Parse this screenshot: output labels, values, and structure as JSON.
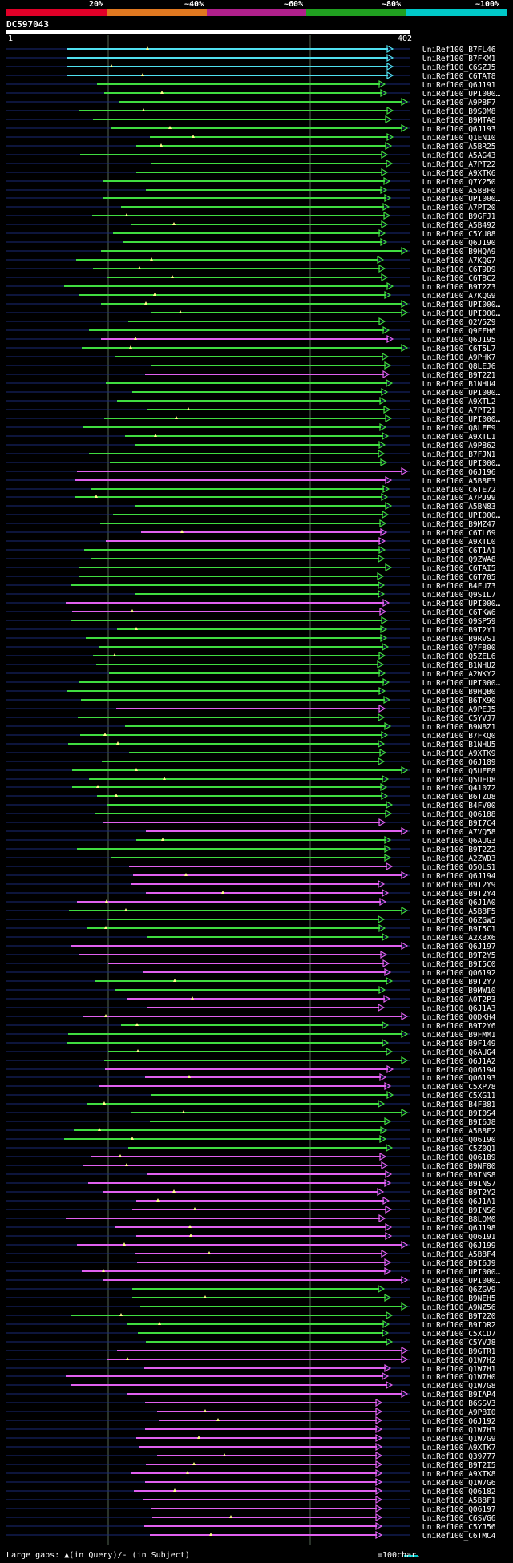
{
  "query_id": "DC597043",
  "query_start": "1",
  "query_end": "402",
  "scale_labels": [
    "20%",
    "~40%",
    "~60%",
    "~80%",
    "~100%"
  ],
  "colors": {
    "scale_20": "#e00028",
    "scale_40": "#e07820",
    "scale_60": "#b0208c",
    "scale_80": "#20a020",
    "scale_100": "#00c8c8",
    "hit_100": "#50e0f0",
    "hit_80": "#40dc40",
    "hit_60": "#e060f0",
    "row_line": "#1a2a78",
    "gridline": "#556655"
  },
  "footer": {
    "large_gaps": "Large gaps: ▲(in Query)/- (in Subject)",
    "scale": "=100char."
  },
  "hits": [
    "UniRef100_B7FL46",
    "UniRef100_B7FKM1",
    "UniRef100_C6SZJ5",
    "UniRef100_C6TAT8",
    "UniRef100_Q6J191",
    "UniRef100_UPI000…",
    "UniRef100_A9P8F7",
    "UniRef100_B9S0M8",
    "UniRef100_B9MTA8",
    "UniRef100_Q6J193",
    "UniRef100_Q1EN10",
    "UniRef100_A5BR25",
    "UniRef100_A5AG43",
    "UniRef100_A7PT22",
    "UniRef100_A9XTK6",
    "UniRef100_Q7Y250",
    "UniRef100_A5B8F0",
    "UniRef100_UPI000…",
    "UniRef100_A7PT20",
    "UniRef100_B9GFJ1",
    "UniRef100_A5B492",
    "UniRef100_C5YU08",
    "UniRef100_Q6J190",
    "UniRef100_B9HQA9",
    "UniRef100_A7KQG7",
    "UniRef100_C6T9D9",
    "UniRef100_C6T8C2",
    "UniRef100_B9T2Z3",
    "UniRef100_A7KQG9",
    "UniRef100_UPI000…",
    "UniRef100_UPI000…",
    "UniRef100_Q2V5Z9",
    "UniRef100_Q9FFH6",
    "UniRef100_Q6J195",
    "UniRef100_C6T5L7",
    "UniRef100_A9PHK7",
    "UniRef100_Q8LEJ6",
    "UniRef100_B9T2Z1",
    "UniRef100_B1NHU4",
    "UniRef100_UPI000…",
    "UniRef100_A9XTL2",
    "UniRef100_A7PT21",
    "UniRef100_UPI000…",
    "UniRef100_Q8LEE9",
    "UniRef100_A9XTL1",
    "UniRef100_A9P862",
    "UniRef100_B7FJN1",
    "UniRef100_UPI000…",
    "UniRef100_Q6J196",
    "UniRef100_A5B8F3",
    "UniRef100_C6TE72",
    "UniRef100_A7PJ99",
    "UniRef100_A5BN83",
    "UniRef100_UPI000…",
    "UniRef100_B9MZ47",
    "UniRef100_C6TL69",
    "UniRef100_A9XTL0",
    "UniRef100_C6T1A1",
    "UniRef100_Q9ZWA8",
    "UniRef100_C6TAI5",
    "UniRef100_C6T705",
    "UniRef100_B4FU73",
    "UniRef100_Q9SIL7",
    "UniRef100_UPI000…",
    "UniRef100_C6TKW6",
    "UniRef100_Q9SP59",
    "UniRef100_B9T2Y1",
    "UniRef100_B9RVS1",
    "UniRef100_Q7F800",
    "UniRef100_Q5ZEL6",
    "UniRef100_B1NHU2",
    "UniRef100_A2WKY2",
    "UniRef100_UPI000…",
    "UniRef100_B9HQB0",
    "UniRef100_B6TX90",
    "UniRef100_A9PEJ5",
    "UniRef100_C5YVJ7",
    "UniRef100_B9NBZ1",
    "UniRef100_B7FKQ0",
    "UniRef100_B1NHU5",
    "UniRef100_A9XTK9",
    "UniRef100_Q6J189",
    "UniRef100_Q5UEF8",
    "UniRef100_Q5UED8",
    "UniRef100_Q41072",
    "UniRef100_B6TZU8",
    "UniRef100_B4FV00",
    "UniRef100_Q06188",
    "UniRef100_B9I7C4",
    "UniRef100_A7VQ58",
    "UniRef100_Q6AUG3",
    "UniRef100_B9T2Z2",
    "UniRef100_A2ZWD3",
    "UniRef100_Q5QLS1",
    "UniRef100_Q6J194",
    "UniRef100_B9T2Y9",
    "UniRef100_B9T2Y4",
    "UniRef100_Q6J1A0",
    "UniRef100_A5B8F5",
    "UniRef100_Q6ZGW5",
    "UniRef100_B9I5C1",
    "UniRef100_A2X3X6",
    "UniRef100_Q6J197",
    "UniRef100_B9T2Y5",
    "UniRef100_B9I5C0",
    "UniRef100_Q06192",
    "UniRef100_B9T2Y7",
    "UniRef100_B9MW10",
    "UniRef100_A0T2P3",
    "UniRef100_Q6J1A3",
    "UniRef100_Q0DKH4",
    "UniRef100_B9T2Y6",
    "UniRef100_B9FMM1",
    "UniRef100_B9F149",
    "UniRef100_Q6AUG4",
    "UniRef100_Q6J1A2",
    "UniRef100_Q06194",
    "UniRef100_Q06193",
    "UniRef100_C5XP78",
    "UniRef100_C5XG11",
    "UniRef100_B4FB81",
    "UniRef100_B9I0S4",
    "UniRef100_B9I6J8",
    "UniRef100_A5B8F2",
    "UniRef100_Q06190",
    "UniRef100_C5Z0Q1",
    "UniRef100_Q06189",
    "UniRef100_B9NF80",
    "UniRef100_B9INS8",
    "UniRef100_B9INS7",
    "UniRef100_B9T2Y2",
    "UniRef100_Q6J1A1",
    "UniRef100_B9INS6",
    "UniRef100_B8LQM0",
    "UniRef100_Q6J198",
    "UniRef100_Q06191",
    "UniRef100_Q6J199",
    "UniRef100_A5B8F4",
    "UniRef100_B9I6J9",
    "UniRef100_UPI000…",
    "UniRef100_UPI000…",
    "UniRef100_Q6ZGV9",
    "UniRef100_B9NEH5",
    "UniRef100_A9NZ56",
    "UniRef100_B9T2Z0",
    "UniRef100_B9IDR2",
    "UniRef100_C5XCD7",
    "UniRef100_C5YVJ8",
    "UniRef100_B9GTR1",
    "UniRef100_Q1W7H2",
    "UniRef100_Q1W7H1",
    "UniRef100_Q1W7H0",
    "UniRef100_Q1W7G8",
    "UniRef100_B9IAP4",
    "UniRef100_B6SSV3",
    "UniRef100_A9PBI0",
    "UniRef100_Q6J192",
    "UniRef100_Q1W7H3",
    "UniRef100_Q1W7G9",
    "UniRef100_A9XTK7",
    "UniRef100_Q39777",
    "UniRef100_B9T2I5",
    "UniRef100_A9XTK8",
    "UniRef100_Q1W7G6",
    "UniRef100_Q06182",
    "UniRef100_A5B8F1",
    "UniRef100_Q06197",
    "UniRef100_C6SVG6",
    "UniRef100_C5YJ56",
    "UniRef100_C6TMC4"
  ]
}
